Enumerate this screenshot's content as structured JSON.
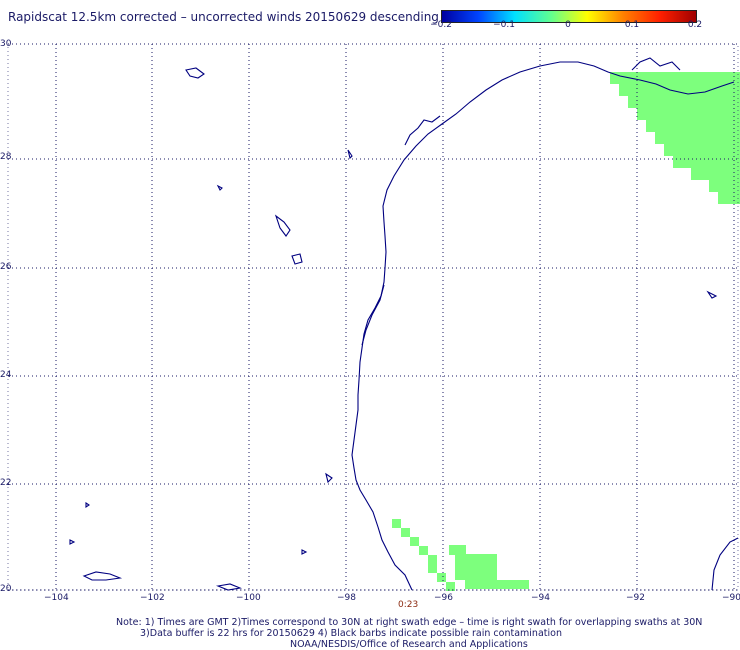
{
  "title": "Rapidscat 12.5km corrected – uncorrected winds 20150629 descending",
  "colorbar": {
    "ticks": [
      "−0.2",
      "−0.1",
      "0",
      "0.1",
      "0.2"
    ],
    "colors": [
      "#0000a0",
      "#0044ff",
      "#00e0ff",
      "#60ff90",
      "#ffff00",
      "#ff8000",
      "#ff2000",
      "#a00000"
    ]
  },
  "map": {
    "lat_labels": [
      "30",
      "28",
      "26",
      "24",
      "22",
      "20"
    ],
    "lon_labels": [
      "−104",
      "−102",
      "−100",
      "−98",
      "−96",
      "−94",
      "−92",
      "−90"
    ],
    "swath_color": "#7dff7d",
    "coast_color": "#000080",
    "grid_color": "#1a1a66",
    "time_label": "0:23"
  },
  "notes": {
    "line1": "Note: 1) Times are GMT 2)Times correspond to 30N at right swath edge – time is right swath for overlapping swaths at 30N",
    "line2": "3)Data buffer is 22 hrs for 20150629 4) Black barbs indicate possible rain contamination",
    "line3": "NOAA/NESDIS/Office of Research and Applications"
  }
}
